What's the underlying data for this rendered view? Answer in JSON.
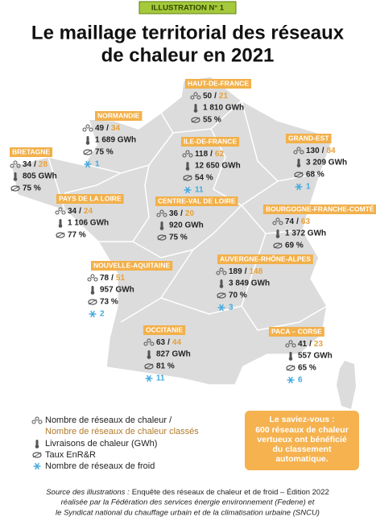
{
  "badge": "ILLUSTRATION N° 1",
  "title": [
    "Le maillage territorial des réseaux",
    "de chaleur en 2021"
  ],
  "separator": "/",
  "regions": [
    {
      "name": "HAUT-DE-FRANCE",
      "networks": "50",
      "classified": "21",
      "deliveries": "1 810 GWh",
      "rate": "55 %"
    },
    {
      "name": "NORMANDIE",
      "networks": "49",
      "classified": "34",
      "deliveries": "1 689 GWh",
      "rate": "75 %",
      "cold": "1"
    },
    {
      "name": "BRETAGNE",
      "networks": "34",
      "classified": "28",
      "deliveries": "805 GWh",
      "rate": "75 %"
    },
    {
      "name": "ILE-DE-FRANCE",
      "networks": "118",
      "classified": "62",
      "deliveries": "12 650 GWh",
      "rate": "54 %",
      "cold": "11"
    },
    {
      "name": "GRAND-EST",
      "networks": "130",
      "classified": "84",
      "deliveries": "3 209 GWh",
      "rate": "68 %",
      "cold": "1"
    },
    {
      "name": "PAYS DE LA LOIRE",
      "networks": "34",
      "classified": "24",
      "deliveries": "1 106 GWh",
      "rate": "77 %"
    },
    {
      "name": "CENTRE-VAL DE LOIRE",
      "networks": "36",
      "classified": "20",
      "deliveries": "920 GWh",
      "rate": "75 %"
    },
    {
      "name": "BOURGOGNE-FRANCHE-COMTÉ",
      "networks": "74",
      "classified": "63",
      "deliveries": "1 372 GWh",
      "rate": "69 %"
    },
    {
      "name": "NOUVELLE-AQUITAINE",
      "networks": "78",
      "classified": "51",
      "deliveries": "957 GWh",
      "rate": "73 %",
      "cold": "2"
    },
    {
      "name": "AUVERGNE-RHÔNE-ALPES",
      "networks": "189",
      "classified": "148",
      "deliveries": "3 849 GWh",
      "rate": "70 %",
      "cold": "3"
    },
    {
      "name": "OCCITANIE",
      "networks": "63",
      "classified": "44",
      "deliveries": "827 GWh",
      "rate": "81 %",
      "cold": "11"
    },
    {
      "name": "PACA – CORSE",
      "networks": "41",
      "classified": "23",
      "deliveries": "557 GWh",
      "rate": "65 %",
      "cold": "6"
    }
  ],
  "legend": {
    "networks": "Nombre de réseaux de chaleur /",
    "classified": "Nombre de réseaux de chaleur classés",
    "deliveries": "Livraisons de chaleur (GWh)",
    "rate": "Taux EnR&R",
    "cold": "Nombre de réseaux de froid"
  },
  "callout": {
    "title": "Le saviez-vous :",
    "lines": [
      "600 réseaux de chaleur",
      "vertueux ont bénéficié",
      "du classement",
      "automatique."
    ]
  },
  "source": {
    "label": "Source des illustrations :",
    "text": "Enquête des réseaux de chaleur et de froid – Édition 2022",
    "lines": [
      "réalisée par la Fédération des services énergie environnement (Fedene) et",
      "le Syndicat national du chauffage urbain et de la climatisation urbaine (SNCU)"
    ]
  }
}
